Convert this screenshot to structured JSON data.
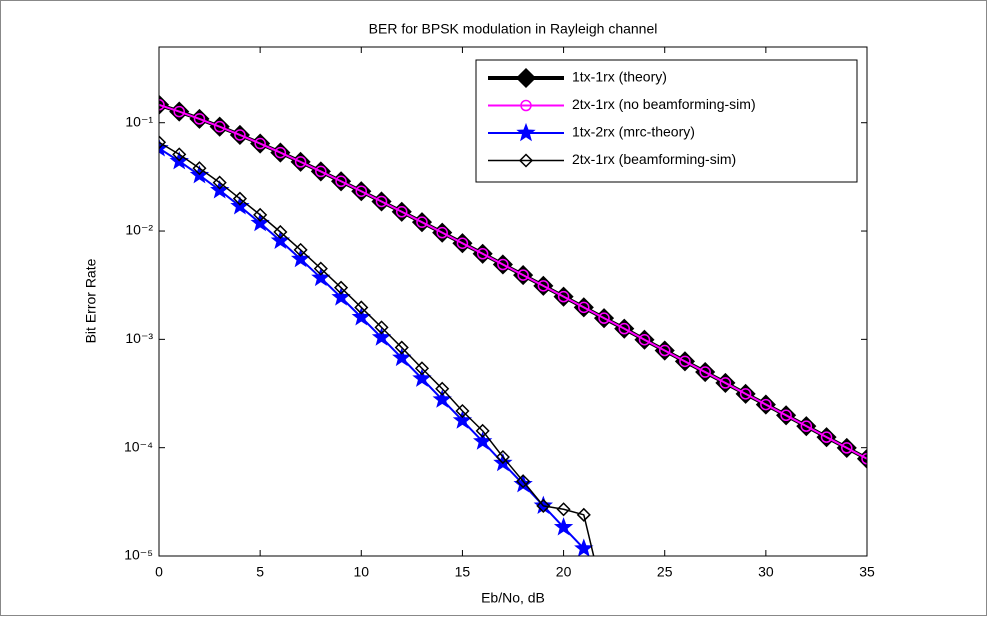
{
  "chart_data": {
    "type": "line",
    "title": "BER for BPSK modulation in Rayleigh channel",
    "xlabel": "Eb/No, dB",
    "ylabel": "Bit Error Rate",
    "log_y": true,
    "grid": false,
    "legend": "top-right",
    "xlim": [
      0,
      35
    ],
    "xticks": [
      0,
      5,
      10,
      15,
      20,
      25,
      30,
      35
    ],
    "ylim": [
      1e-05,
      0.5
    ],
    "yticks": [
      {
        "value": 1e-05,
        "label": "10⁻⁵"
      },
      {
        "value": 0.0001,
        "label": "10⁻⁴"
      },
      {
        "value": 0.001,
        "label": "10⁻³"
      },
      {
        "value": 0.01,
        "label": "10⁻²"
      },
      {
        "value": 0.1,
        "label": "10⁻¹"
      }
    ],
    "x": [
      0,
      1,
      2,
      3,
      4,
      5,
      6,
      7,
      8,
      9,
      10,
      11,
      12,
      13,
      14,
      15,
      16,
      17,
      18,
      19,
      20,
      21,
      22,
      23,
      24,
      25,
      26,
      27,
      28,
      29,
      30,
      31,
      32,
      33,
      34,
      35
    ],
    "series": [
      {
        "name": "1tx-1rx (theory)",
        "color": "#000000",
        "line_width": 4,
        "marker": "diamond",
        "marker_fill": "#000000",
        "marker_size": 9,
        "values": [
          0.1464,
          0.1267,
          0.1085,
          0.0919,
          0.0771,
          0.0642,
          0.053,
          0.0435,
          0.0355,
          0.0288,
          0.0233,
          0.01874,
          0.01506,
          0.01207,
          0.00966,
          0.00772,
          0.00617,
          0.00491,
          0.00392,
          0.00312,
          0.00248,
          0.001975,
          0.00157,
          0.001255,
          0.000992,
          0.000789,
          0.000627,
          0.000499,
          0.000396,
          0.000314,
          0.00025,
          0.000199,
          0.000158,
          0.000125,
          9.95e-05,
          7.9e-05
        ]
      },
      {
        "name": "2tx-1rx (no beamforming-sim)",
        "color": "#ff00ff",
        "line_width": 2,
        "marker": "circle",
        "marker_fill": "none",
        "marker_size": 5,
        "values": [
          0.1464,
          0.1267,
          0.1085,
          0.0919,
          0.0771,
          0.0642,
          0.053,
          0.0435,
          0.0355,
          0.0288,
          0.0233,
          0.01874,
          0.01506,
          0.01207,
          0.00966,
          0.00772,
          0.00617,
          0.00491,
          0.00392,
          0.00312,
          0.00248,
          0.001975,
          0.00157,
          0.001255,
          0.000992,
          0.000789,
          0.000627,
          0.000499,
          0.000396,
          0.000314,
          0.00025,
          0.000199,
          0.000158,
          0.000125,
          9.95e-05,
          7.9e-05
        ]
      },
      {
        "name": "1tx-2rx (mrc-theory)",
        "color": "#0000ff",
        "line_width": 2,
        "marker": "star",
        "marker_fill": "#0000ff",
        "marker_size": 8,
        "values": [
          0.058,
          0.0441,
          0.0328,
          0.0238,
          0.01692,
          0.01184,
          0.00813,
          0.00551,
          0.00369,
          0.00244,
          0.0016,
          0.00104,
          0.000674,
          0.000434,
          0.000278,
          0.000178,
          0.000114,
          7.21e-05,
          4.6e-05,
          2.91e-05,
          1.84e-05,
          1.17e-05,
          null,
          null,
          null,
          null,
          null,
          null,
          null,
          null,
          null,
          null,
          null,
          null,
          null,
          null
        ]
      },
      {
        "name": "2tx-1rx (beamforming-sim)",
        "color": "#000000",
        "line_width": 1.5,
        "marker": "diamond",
        "marker_fill": "none",
        "marker_size": 6,
        "values": [
          0.066,
          0.051,
          0.038,
          0.028,
          0.0199,
          0.0141,
          0.0098,
          0.0067,
          0.0045,
          0.003,
          0.00197,
          0.00129,
          0.00084,
          0.00054,
          0.00035,
          0.000218,
          0.000143,
          8.2e-05,
          4.9e-05,
          2.9e-05,
          2.7e-05,
          2.4e-05,
          4e-06,
          null,
          null,
          null,
          null,
          null,
          null,
          null,
          null,
          null,
          null,
          null,
          null,
          null
        ]
      }
    ]
  }
}
